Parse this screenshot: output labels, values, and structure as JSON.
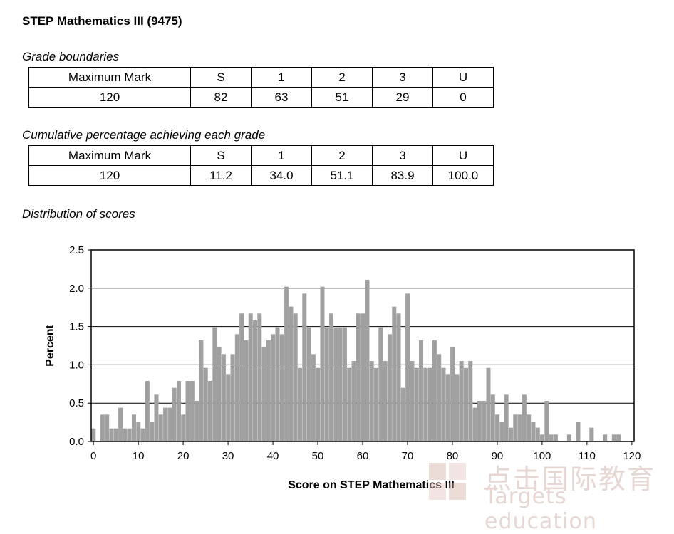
{
  "title": "STEP Mathematics III (9475)",
  "grade_boundaries": {
    "heading": "Grade boundaries",
    "headers": [
      "Maximum Mark",
      "S",
      "1",
      "2",
      "3",
      "U"
    ],
    "values": [
      "120",
      "82",
      "63",
      "51",
      "29",
      "0"
    ]
  },
  "cumulative": {
    "heading": "Cumulative percentage achieving each grade",
    "headers": [
      "Maximum Mark",
      "S",
      "1",
      "2",
      "3",
      "U"
    ],
    "values": [
      "120",
      "11.2",
      "34.0",
      "51.1",
      "83.9",
      "100.0"
    ]
  },
  "distribution_heading": "Distribution of scores",
  "chart_data": {
    "type": "bar",
    "title": "",
    "xlabel": "Score on STEP Mathematics III",
    "ylabel": "Percent",
    "xlim": [
      0,
      120
    ],
    "ylim": [
      0,
      2.5
    ],
    "x_ticks": [
      0,
      10,
      20,
      30,
      40,
      50,
      60,
      70,
      80,
      90,
      100,
      110,
      120
    ],
    "y_ticks": [
      "0.0",
      "0.5",
      "1.0",
      "1.5",
      "2.0",
      "2.5"
    ],
    "grid": "horizontal",
    "bar_color": "#a0a0a0",
    "x": [
      0,
      1,
      2,
      3,
      4,
      5,
      6,
      7,
      8,
      9,
      10,
      11,
      12,
      13,
      14,
      15,
      16,
      17,
      18,
      19,
      20,
      21,
      22,
      23,
      24,
      25,
      26,
      27,
      28,
      29,
      30,
      31,
      32,
      33,
      34,
      35,
      36,
      37,
      38,
      39,
      40,
      41,
      42,
      43,
      44,
      45,
      46,
      47,
      48,
      49,
      50,
      51,
      52,
      53,
      54,
      55,
      56,
      57,
      58,
      59,
      60,
      61,
      62,
      63,
      64,
      65,
      66,
      67,
      68,
      69,
      70,
      71,
      72,
      73,
      74,
      75,
      76,
      77,
      78,
      79,
      80,
      81,
      82,
      83,
      84,
      85,
      86,
      87,
      88,
      89,
      90,
      91,
      92,
      93,
      94,
      95,
      96,
      97,
      98,
      99,
      100,
      101,
      102,
      103,
      104,
      105,
      106,
      107,
      108,
      109,
      110,
      111,
      112,
      113,
      114,
      115,
      116,
      117,
      118,
      119,
      120
    ],
    "values": [
      0.17,
      0,
      0.35,
      0.35,
      0.17,
      0.17,
      0.44,
      0.17,
      0.17,
      0.35,
      0.26,
      0.17,
      0.79,
      0.26,
      0.61,
      0.35,
      0.44,
      0.44,
      0.7,
      0.79,
      0.35,
      0.79,
      0.79,
      0.53,
      1.32,
      0.96,
      0.79,
      1.49,
      1.23,
      1.14,
      0.88,
      1.14,
      1.4,
      1.67,
      1.32,
      1.67,
      1.58,
      1.67,
      1.23,
      1.32,
      1.4,
      1.49,
      1.4,
      2.02,
      1.76,
      1.67,
      0.96,
      1.93,
      1.49,
      1.14,
      0.96,
      2.02,
      1.49,
      1.67,
      1.49,
      1.49,
      1.49,
      0.96,
      1.05,
      1.67,
      1.67,
      2.11,
      1.05,
      0.96,
      1.49,
      1.05,
      1.4,
      1.76,
      1.67,
      0.7,
      1.93,
      1.05,
      0.96,
      1.32,
      0.96,
      0.96,
      1.32,
      1.14,
      0.96,
      0.88,
      1.23,
      0.88,
      1.05,
      0.96,
      1.05,
      0.44,
      0.53,
      0.53,
      0.96,
      0.61,
      0.35,
      0.26,
      0.61,
      0.18,
      0.35,
      0.35,
      0.61,
      0.35,
      0.26,
      0.18,
      0.09,
      0.53,
      0.09,
      0.09,
      0,
      0,
      0.09,
      0,
      0.26,
      0,
      0,
      0.18,
      0,
      0,
      0.09,
      0,
      0.09,
      0.09,
      0,
      0,
      0
    ]
  },
  "watermark": {
    "chinese": "点击国际教育",
    "english": "Targets education"
  }
}
